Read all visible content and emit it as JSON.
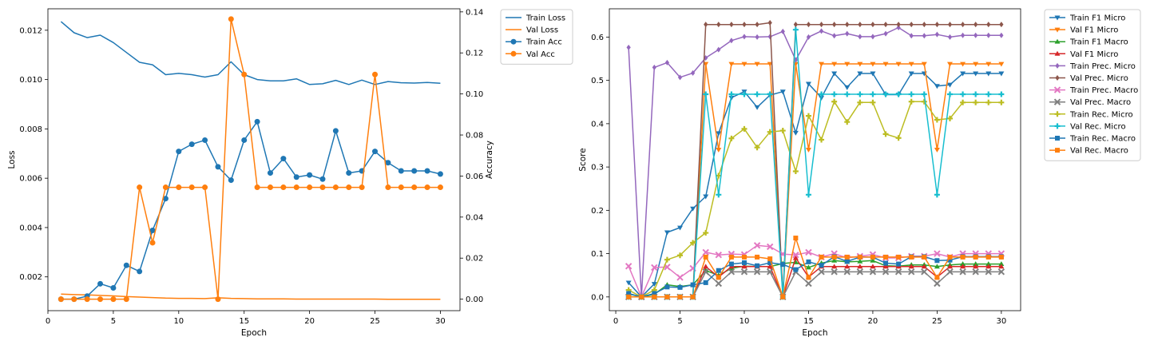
{
  "chart_data": [
    {
      "type": "line",
      "xlabel": "Epoch",
      "ylabel": "Loss",
      "y2label": "Accuracy",
      "xlim": [
        0,
        31.5
      ],
      "ylim": [
        0.00063,
        0.01287
      ],
      "y2lim": [
        -0.0056,
        0.1415
      ],
      "xticks": [
        0,
        5,
        10,
        15,
        20,
        25,
        30
      ],
      "xtick_labels": [
        "0",
        "5",
        "10",
        "15",
        "20",
        "25",
        "30"
      ],
      "yticks": [
        0.002,
        0.004,
        0.006,
        0.008,
        0.01,
        0.012
      ],
      "ytick_labels": [
        "0.002",
        "0.004",
        "0.006",
        "0.008",
        "0.010",
        "0.012"
      ],
      "y2ticks": [
        0,
        0.02,
        0.04,
        0.06,
        0.08,
        0.1,
        0.12,
        0.14
      ],
      "y2tick_labels": [
        "0.00",
        "0.02",
        "0.04",
        "0.06",
        "0.08",
        "0.10",
        "0.12",
        "0.14"
      ],
      "grid": false,
      "legend_position": "outside-right",
      "x": [
        1,
        2,
        3,
        4,
        5,
        6,
        7,
        8,
        9,
        10,
        11,
        12,
        13,
        14,
        15,
        16,
        17,
        18,
        19,
        20,
        21,
        22,
        23,
        24,
        25,
        26,
        27,
        28,
        29,
        30
      ],
      "series": [
        {
          "name": "Train Loss",
          "axis": "left",
          "color": "#1f77b4",
          "marker": "none",
          "values": [
            0.01235,
            0.0119,
            0.0117,
            0.0118,
            0.0115,
            0.0111,
            0.0107,
            0.0106,
            0.0102,
            0.01025,
            0.0102,
            0.0101,
            0.0102,
            0.01072,
            0.0102,
            0.01,
            0.00995,
            0.00995,
            0.01003,
            0.0098,
            0.00983,
            0.00997,
            0.0098,
            0.00998,
            0.0098,
            0.00992,
            0.00987,
            0.00986,
            0.00988,
            0.00985
          ]
        },
        {
          "name": "Val Loss",
          "axis": "left",
          "color": "#ff7f0e",
          "marker": "none",
          "values": [
            0.0013,
            0.00128,
            0.00127,
            0.00125,
            0.00123,
            0.0012,
            0.00118,
            0.00116,
            0.00114,
            0.00113,
            0.00113,
            0.00112,
            0.00115,
            0.00113,
            0.00112,
            0.00111,
            0.00111,
            0.00111,
            0.0011,
            0.0011,
            0.0011,
            0.0011,
            0.0011,
            0.0011,
            0.0011,
            0.00109,
            0.00109,
            0.00109,
            0.00109,
            0.00109
          ]
        },
        {
          "name": "Train Acc",
          "axis": "right",
          "color": "#1f77b4",
          "marker": "circle",
          "values": [
            0,
            0,
            0.0015,
            0.0075,
            0.0055,
            0.0165,
            0.0135,
            0.0335,
            0.049,
            0.072,
            0.0755,
            0.0775,
            0.0645,
            0.058,
            0.0775,
            0.0865,
            0.0615,
            0.0685,
            0.0595,
            0.0605,
            0.0585,
            0.082,
            0.0615,
            0.0625,
            0.072,
            0.0665,
            0.0625,
            0.0625,
            0.0625,
            0.061
          ]
        },
        {
          "name": "Val Acc",
          "axis": "right",
          "color": "#ff7f0e",
          "marker": "circle",
          "values": [
            0,
            0,
            0,
            0,
            0,
            0,
            0.0545,
            0.0275,
            0.0545,
            0.0545,
            0.0545,
            0.0545,
            0,
            0.1365,
            0.1095,
            0.0545,
            0.0545,
            0.0545,
            0.0545,
            0.0545,
            0.0545,
            0.0545,
            0.0545,
            0.0545,
            0.1095,
            0.0545,
            0.0545,
            0.0545,
            0.0545,
            0.0545
          ]
        }
      ]
    },
    {
      "type": "line",
      "xlabel": "Epoch",
      "ylabel": "Score",
      "xlim": [
        -0.5,
        31.5
      ],
      "ylim": [
        -0.0317,
        0.6653
      ],
      "xticks": [
        0,
        5,
        10,
        15,
        20,
        25,
        30
      ],
      "xtick_labels": [
        "0",
        "5",
        "10",
        "15",
        "20",
        "25",
        "30"
      ],
      "yticks": [
        0,
        0.1,
        0.2,
        0.3,
        0.4,
        0.5,
        0.6
      ],
      "ytick_labels": [
        "0.0",
        "0.1",
        "0.2",
        "0.3",
        "0.4",
        "0.5",
        "0.6"
      ],
      "grid": false,
      "legend_position": "outside-right",
      "x": [
        1,
        2,
        3,
        4,
        5,
        6,
        7,
        8,
        9,
        10,
        11,
        12,
        13,
        14,
        15,
        16,
        17,
        18,
        19,
        20,
        21,
        22,
        23,
        24,
        25,
        26,
        27,
        28,
        29,
        30
      ],
      "series": [
        {
          "name": "Train F1 Micro",
          "color": "#1f77b4",
          "marker": "tri_down",
          "values": [
            0.033,
            0,
            0.03,
            0.149,
            0.16,
            0.204,
            0.232,
            0.378,
            0.46,
            0.474,
            0.438,
            0.466,
            0.474,
            0.379,
            0.492,
            0.46,
            0.516,
            0.484,
            0.516,
            0.516,
            0.467,
            0.467,
            0.516,
            0.516,
            0.487,
            0.49,
            0.516,
            0.516,
            0.516,
            0.516
          ]
        },
        {
          "name": "Val F1 Micro",
          "color": "#ff7f0e",
          "marker": "tri_down",
          "values": [
            0,
            0,
            0,
            0,
            0,
            0,
            0.538,
            0.34,
            0.538,
            0.538,
            0.538,
            0.538,
            0,
            0.538,
            0.34,
            0.538,
            0.538,
            0.538,
            0.538,
            0.538,
            0.538,
            0.538,
            0.538,
            0.538,
            0.34,
            0.538,
            0.538,
            0.538,
            0.538,
            0.538
          ]
        },
        {
          "name": "Train F1 Macro",
          "color": "#2ca02c",
          "marker": "tri_up",
          "values": [
            0.007,
            0,
            0.006,
            0.028,
            0.024,
            0.028,
            0.061,
            0.05,
            0.066,
            0.071,
            0.07,
            0.07,
            0.077,
            0.08,
            0.068,
            0.078,
            0.084,
            0.081,
            0.082,
            0.084,
            0.072,
            0.071,
            0.074,
            0.074,
            0.07,
            0.074,
            0.076,
            0.076,
            0.076,
            0.076
          ]
        },
        {
          "name": "Val F1 Micro",
          "color": "#d62728",
          "marker": "tri_up",
          "values": [
            0,
            0,
            0,
            0,
            0,
            0,
            0.07,
            0.046,
            0.07,
            0.07,
            0.07,
            0.07,
            0,
            0.09,
            0.046,
            0.07,
            0.07,
            0.07,
            0.07,
            0.07,
            0.07,
            0.07,
            0.07,
            0.07,
            0.046,
            0.07,
            0.07,
            0.07,
            0.07,
            0.07
          ]
        },
        {
          "name": "Train Prec. Micro",
          "color": "#9467bd",
          "marker": "diamond",
          "values": [
            0.576,
            0,
            0.53,
            0.541,
            0.507,
            0.517,
            0.552,
            0.571,
            0.592,
            0.601,
            0.6,
            0.601,
            0.613,
            0.547,
            0.6,
            0.614,
            0.603,
            0.608,
            0.601,
            0.601,
            0.608,
            0.622,
            0.603,
            0.603,
            0.606,
            0.6,
            0.604,
            0.604,
            0.604,
            0.604
          ]
        },
        {
          "name": "Val Prec. Micro",
          "color": "#8c564b",
          "marker": "diamond",
          "values": [
            0,
            0,
            0,
            0,
            0,
            0,
            0.629,
            0.629,
            0.629,
            0.629,
            0.629,
            0.633,
            0,
            0.629,
            0.629,
            0.629,
            0.629,
            0.629,
            0.629,
            0.629,
            0.629,
            0.629,
            0.629,
            0.629,
            0.629,
            0.629,
            0.629,
            0.629,
            0.629,
            0.629
          ]
        },
        {
          "name": "Train Prec. Macro",
          "color": "#e377c2",
          "marker": "x",
          "values": [
            0.071,
            0,
            0.068,
            0.069,
            0.045,
            0.066,
            0.103,
            0.097,
            0.099,
            0.098,
            0.119,
            0.116,
            0.099,
            0.097,
            0.103,
            0.092,
            0.1,
            0.09,
            0.094,
            0.098,
            0.09,
            0.09,
            0.094,
            0.094,
            0.1,
            0.092,
            0.1,
            0.1,
            0.1,
            0.1
          ]
        },
        {
          "name": "Val Prec. Macro",
          "color": "#7f7f7f",
          "marker": "x",
          "values": [
            0,
            0,
            0,
            0,
            0,
            0,
            0.058,
            0.031,
            0.058,
            0.058,
            0.058,
            0.058,
            0,
            0.058,
            0.031,
            0.058,
            0.058,
            0.058,
            0.058,
            0.058,
            0.058,
            0.058,
            0.058,
            0.058,
            0.031,
            0.058,
            0.058,
            0.058,
            0.058,
            0.058
          ]
        },
        {
          "name": "Train Rec. Micro",
          "color": "#bcbd22",
          "marker": "plus",
          "values": [
            0.016,
            0,
            0.016,
            0.086,
            0.096,
            0.125,
            0.148,
            0.28,
            0.366,
            0.388,
            0.345,
            0.381,
            0.384,
            0.29,
            0.418,
            0.363,
            0.451,
            0.404,
            0.449,
            0.449,
            0.376,
            0.367,
            0.451,
            0.451,
            0.409,
            0.412,
            0.449,
            0.449,
            0.449,
            0.449
          ]
        },
        {
          "name": "Val Rec. Micro",
          "color": "#17becf",
          "marker": "plus",
          "values": [
            0,
            0,
            0,
            0,
            0,
            0,
            0.468,
            0.236,
            0.468,
            0.468,
            0.468,
            0.468,
            0,
            0.617,
            0.236,
            0.468,
            0.468,
            0.468,
            0.468,
            0.468,
            0.468,
            0.468,
            0.468,
            0.468,
            0.236,
            0.468,
            0.468,
            0.468,
            0.468,
            0.468
          ]
        },
        {
          "name": "Train Rec. Macro",
          "color": "#1f77b4",
          "marker": "square",
          "values": [
            0.008,
            0,
            0.008,
            0.023,
            0.022,
            0.028,
            0.033,
            0.061,
            0.076,
            0.079,
            0.072,
            0.079,
            0.075,
            0.063,
            0.081,
            0.073,
            0.093,
            0.082,
            0.092,
            0.092,
            0.078,
            0.076,
            0.093,
            0.093,
            0.084,
            0.085,
            0.093,
            0.093,
            0.093,
            0.093
          ]
        },
        {
          "name": "Val Rec. Macro",
          "color": "#ff7f0e",
          "marker": "square",
          "values": [
            0,
            0,
            0,
            0,
            0,
            0,
            0.092,
            0.045,
            0.092,
            0.092,
            0.092,
            0.088,
            0,
            0.136,
            0.045,
            0.092,
            0.092,
            0.092,
            0.092,
            0.092,
            0.092,
            0.092,
            0.092,
            0.092,
            0.045,
            0.092,
            0.092,
            0.092,
            0.092,
            0.092
          ]
        }
      ]
    }
  ]
}
